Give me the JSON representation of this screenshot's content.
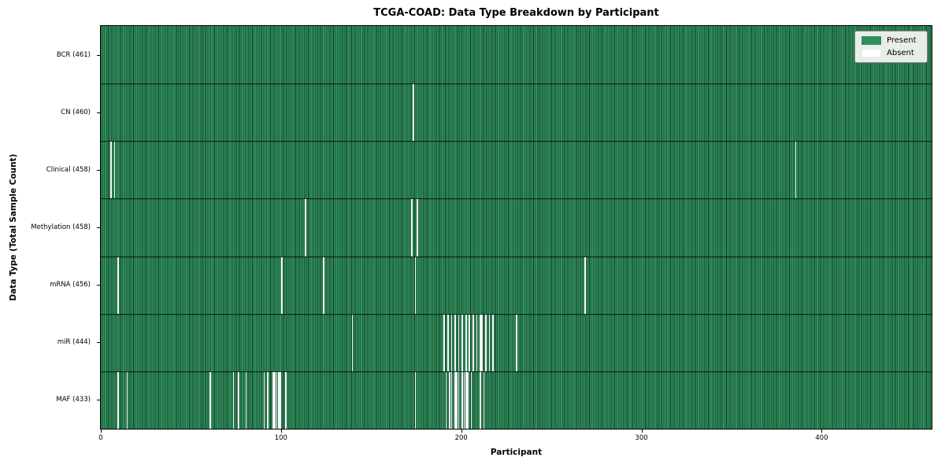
{
  "chart_data": {
    "type": "heatmap",
    "title": "TCGA-COAD: Data Type Breakdown by Participant",
    "xlabel": "Participant",
    "ylabel": "Data Type (Total Sample Count)",
    "n_participants": 461,
    "x_ticks": [
      0,
      100,
      200,
      300,
      400
    ],
    "xlim": [
      0,
      461
    ],
    "grid": false,
    "legend_position": "upper right",
    "colors": {
      "present": "#2f8f5c",
      "absent": "#ffffff",
      "bar_edge": "#143d28"
    },
    "legend": [
      {
        "label": "Present",
        "color": "#2f8f5c"
      },
      {
        "label": "Absent",
        "color": "#ffffff"
      }
    ],
    "rows": [
      {
        "label": "BCR (461)",
        "data_type": "BCR",
        "count": 461,
        "absent": []
      },
      {
        "label": "CN (460)",
        "data_type": "CN",
        "count": 460,
        "absent": [
          173
        ]
      },
      {
        "label": "Clinical (458)",
        "data_type": "Clinical",
        "count": 458,
        "absent": [
          5,
          7,
          385
        ]
      },
      {
        "label": "Methylation (458)",
        "data_type": "Methylation",
        "count": 458,
        "absent": [
          113,
          172,
          175
        ]
      },
      {
        "label": "mRNA (456)",
        "data_type": "mRNA",
        "count": 456,
        "absent": [
          9,
          100,
          123,
          174,
          268
        ]
      },
      {
        "label": "miR (444)",
        "data_type": "miR",
        "count": 444,
        "absent": [
          139,
          190,
          192,
          194,
          196,
          198,
          200,
          202,
          204,
          206,
          208,
          210,
          211,
          213,
          215,
          217,
          230
        ]
      },
      {
        "label": "MAF (433)",
        "data_type": "MAF",
        "count": 433,
        "absent": [
          9,
          14,
          60,
          73,
          76,
          80,
          90,
          92,
          95,
          96,
          97,
          98,
          99,
          102,
          174,
          191,
          193,
          194,
          196,
          197,
          198,
          200,
          201,
          202,
          203,
          205,
          210,
          212
        ]
      }
    ]
  }
}
